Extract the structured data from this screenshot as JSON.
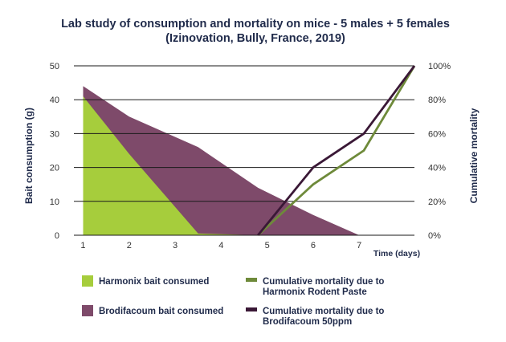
{
  "chart_data": {
    "type": "area",
    "title": [
      "Lab study of consumption and mortality on mice - 5 males + 5 females",
      "(Izinovation, Bully, France, 2019)"
    ],
    "xlabel": "Time (days)",
    "ylabel_left": "Bait consumption (g)",
    "ylabel_right": "Cumulative mortality",
    "x_ticks": [
      1,
      2,
      3,
      4,
      5,
      6,
      7
    ],
    "y_ticks_left": [
      0,
      10,
      20,
      30,
      40,
      50
    ],
    "y_ticks_right": [
      "0%",
      "20%",
      "40%",
      "60%",
      "80%",
      "100%"
    ],
    "xlim": [
      0.8,
      8.2
    ],
    "ylim_left": [
      0,
      50
    ],
    "ylim_right": [
      0,
      100
    ],
    "series": [
      {
        "name": "Brodifacoum bait consumed",
        "type": "area",
        "axis": "left",
        "color": "#7e4a6a",
        "points": [
          [
            1,
            44
          ],
          [
            2,
            35
          ],
          [
            3.5,
            26
          ],
          [
            4.8,
            14
          ],
          [
            6,
            6
          ],
          [
            7,
            0
          ],
          [
            8.2,
            0
          ]
        ]
      },
      {
        "name": "Harmonix bait consumed",
        "type": "area",
        "axis": "left",
        "color": "#a6cd3c",
        "points": [
          [
            1,
            41
          ],
          [
            2,
            24
          ],
          [
            3.5,
            0.5
          ],
          [
            4.8,
            0
          ],
          [
            8.2,
            0
          ]
        ]
      },
      {
        "name": "Cumulative mortality due to Harmonix Rodent Paste",
        "legend_lines": [
          "Cumulative mortality due to",
          "Harmonix Rodent Paste"
        ],
        "type": "line",
        "axis": "right",
        "color": "#6e8a3a",
        "points": [
          [
            4.8,
            0
          ],
          [
            6,
            30
          ],
          [
            7.1,
            50
          ],
          [
            8.2,
            100
          ]
        ]
      },
      {
        "name": "Cumulative mortality due to Brodifacoum 50ppm",
        "legend_lines": [
          "Cumulative mortality due to",
          "Brodifacoum 50ppm"
        ],
        "type": "line",
        "axis": "right",
        "color": "#3a1836",
        "points": [
          [
            4.8,
            0
          ],
          [
            6,
            40
          ],
          [
            7.1,
            60
          ],
          [
            8.2,
            100
          ]
        ]
      }
    ]
  }
}
